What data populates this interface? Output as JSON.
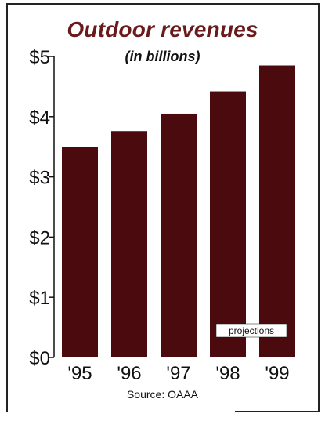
{
  "chart_data": {
    "type": "bar",
    "title": "Outdoor revenues",
    "subtitle": "(in billions)",
    "categories": [
      "'95",
      "'96",
      "'97",
      "'98",
      "'99"
    ],
    "values": [
      3.5,
      3.76,
      4.05,
      4.42,
      4.85
    ],
    "ylim": [
      0,
      5
    ],
    "yticks": [
      "$0",
      "$1",
      "$2",
      "$3",
      "$4",
      "$5"
    ],
    "annotation": "projections",
    "source": "Source: OAAA",
    "bar_color": "#4a0a0e",
    "title_color": "#6a1a1a",
    "grid": false
  }
}
